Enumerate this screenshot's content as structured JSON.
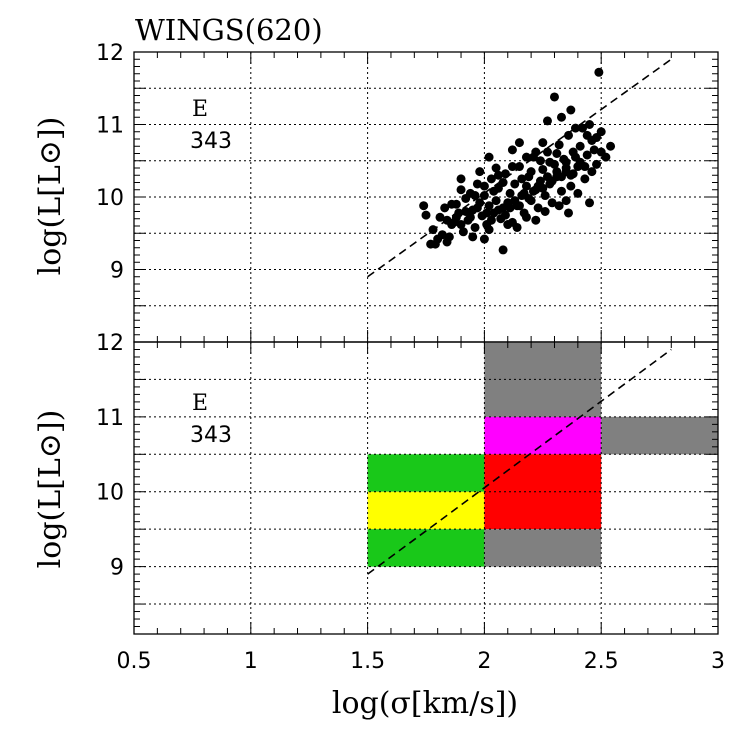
{
  "chart_data": {
    "type": "scatter",
    "title": "WINGS(620)",
    "xlabel": "log(σ[km/s])",
    "ylabel": "log(L[L⊙])",
    "xlim": [
      0.5,
      3.0
    ],
    "x_ticks": [
      "0.5",
      "1",
      "1.5",
      "2",
      "2.5",
      "3"
    ],
    "x_tick_values": [
      0.5,
      1.0,
      1.5,
      2.0,
      2.5,
      3.0
    ],
    "reference_line": {
      "style": "dashed",
      "points": [
        [
          1.5,
          8.9
        ],
        [
          2.8,
          11.9
        ]
      ]
    },
    "panels": [
      {
        "name": "top",
        "type": "scatter",
        "ylim": [
          8.0,
          12.0
        ],
        "y_ticks": [
          "9",
          "10",
          "11",
          "12"
        ],
        "y_tick_values": [
          9,
          10,
          11,
          12
        ],
        "annotation": {
          "label": "E",
          "count": "343"
        },
        "points": [
          [
            1.74,
            9.88
          ],
          [
            1.75,
            9.75
          ],
          [
            1.77,
            9.35
          ],
          [
            1.78,
            9.55
          ],
          [
            1.8,
            9.42
          ],
          [
            1.81,
            9.72
          ],
          [
            1.83,
            9.85
          ],
          [
            1.85,
            9.45
          ],
          [
            1.86,
            9.62
          ],
          [
            1.88,
            9.9
          ],
          [
            1.89,
            9.78
          ],
          [
            1.9,
            10.1
          ],
          [
            1.91,
            9.52
          ],
          [
            1.92,
            9.98
          ],
          [
            1.93,
            9.68
          ],
          [
            1.94,
            10.05
          ],
          [
            1.95,
            9.82
          ],
          [
            1.96,
            9.58
          ],
          [
            1.97,
            10.18
          ],
          [
            1.98,
            9.92
          ],
          [
            1.99,
            9.74
          ],
          [
            2.0,
            10.02
          ],
          [
            2.01,
            9.62
          ],
          [
            2.02,
            9.88
          ],
          [
            2.03,
            10.25
          ],
          [
            2.04,
            9.78
          ],
          [
            2.05,
            9.95
          ],
          [
            2.06,
            10.12
          ],
          [
            2.07,
            9.7
          ],
          [
            2.08,
            9.85
          ],
          [
            2.09,
            10.32
          ],
          [
            2.1,
            9.92
          ],
          [
            2.11,
            10.05
          ],
          [
            2.12,
            9.65
          ],
          [
            2.13,
            10.18
          ],
          [
            2.14,
            9.88
          ],
          [
            2.15,
            10.42
          ],
          [
            2.16,
            10.02
          ],
          [
            2.17,
            9.78
          ],
          [
            2.18,
            10.15
          ],
          [
            2.19,
            10.28
          ],
          [
            2.2,
            9.95
          ],
          [
            2.21,
            10.55
          ],
          [
            2.22,
            10.1
          ],
          [
            2.23,
            9.85
          ],
          [
            2.24,
            10.22
          ],
          [
            2.25,
            10.38
          ],
          [
            2.26,
            10.02
          ],
          [
            2.27,
            10.62
          ],
          [
            2.28,
            10.18
          ],
          [
            2.29,
            9.92
          ],
          [
            2.3,
            10.45
          ],
          [
            2.31,
            10.28
          ],
          [
            2.32,
            10.72
          ],
          [
            2.33,
            10.08
          ],
          [
            2.34,
            10.52
          ],
          [
            2.35,
            10.35
          ],
          [
            2.36,
            10.85
          ],
          [
            2.37,
            10.15
          ],
          [
            2.38,
            10.62
          ],
          [
            2.4,
            10.42
          ],
          [
            2.42,
            10.95
          ],
          [
            2.44,
            10.58
          ],
          [
            2.46,
            10.78
          ],
          [
            2.48,
            10.45
          ],
          [
            2.5,
            10.9
          ],
          [
            2.52,
            10.55
          ],
          [
            2.54,
            10.7
          ],
          [
            2.4,
            10.05
          ],
          [
            2.35,
            9.95
          ],
          [
            2.3,
            11.38
          ],
          [
            2.49,
            11.72
          ],
          [
            2.33,
            11.1
          ],
          [
            2.37,
            11.2
          ],
          [
            2.45,
            11.0
          ],
          [
            2.44,
            10.85
          ],
          [
            2.39,
            10.95
          ],
          [
            2.27,
            11.05
          ],
          [
            2.15,
            10.75
          ],
          [
            2.12,
            10.65
          ],
          [
            2.05,
            10.4
          ],
          [
            1.98,
            10.35
          ],
          [
            2.02,
            10.55
          ],
          [
            1.9,
            10.25
          ],
          [
            1.87,
            9.65
          ],
          [
            1.79,
            9.35
          ],
          [
            1.82,
            9.48
          ],
          [
            1.84,
            9.38
          ],
          [
            1.95,
            9.45
          ],
          [
            2.0,
            9.42
          ],
          [
            2.02,
            9.55
          ],
          [
            2.08,
            9.27
          ],
          [
            2.1,
            9.62
          ],
          [
            2.14,
            9.58
          ],
          [
            2.18,
            9.72
          ],
          [
            2.22,
            9.68
          ],
          [
            2.26,
            9.8
          ],
          [
            2.32,
            9.88
          ],
          [
            2.36,
            9.78
          ],
          [
            2.45,
            9.92
          ],
          [
            2.43,
            10.25
          ],
          [
            2.47,
            10.65
          ],
          [
            2.38,
            10.32
          ],
          [
            2.28,
            10.48
          ],
          [
            2.24,
            10.5
          ],
          [
            2.2,
            10.35
          ],
          [
            2.16,
            10.25
          ],
          [
            2.06,
            10.3
          ],
          [
            2.12,
            10.42
          ],
          [
            2.25,
            10.75
          ],
          [
            2.31,
            10.6
          ],
          [
            2.41,
            10.7
          ],
          [
            2.35,
            10.48
          ],
          [
            2.22,
            10.62
          ],
          [
            2.18,
            10.55
          ],
          [
            2.08,
            10.2
          ],
          [
            2.04,
            10.08
          ],
          [
            2.0,
            10.15
          ],
          [
            1.96,
            10.02
          ],
          [
            1.92,
            9.8
          ],
          [
            1.88,
            9.72
          ],
          [
            1.86,
            9.9
          ],
          [
            1.84,
            9.68
          ],
          [
            1.9,
            9.62
          ],
          [
            1.94,
            9.72
          ],
          [
            1.97,
            9.85
          ],
          [
            2.01,
            9.78
          ],
          [
            2.03,
            9.68
          ],
          [
            2.06,
            9.82
          ],
          [
            2.09,
            9.75
          ],
          [
            2.11,
            9.85
          ],
          [
            2.13,
            9.95
          ],
          [
            2.15,
            9.88
          ],
          [
            2.17,
            10.05
          ],
          [
            2.19,
            9.98
          ],
          [
            2.21,
            10.08
          ],
          [
            2.23,
            10.15
          ],
          [
            2.25,
            10.12
          ],
          [
            2.27,
            10.28
          ],
          [
            2.29,
            10.22
          ],
          [
            2.31,
            10.35
          ],
          [
            2.33,
            10.28
          ],
          [
            2.35,
            10.4
          ],
          [
            2.37,
            10.3
          ],
          [
            2.39,
            10.55
          ],
          [
            2.41,
            10.48
          ],
          [
            2.43,
            10.42
          ],
          [
            2.46,
            10.35
          ],
          [
            2.5,
            10.62
          ],
          [
            2.48,
            10.82
          ]
        ]
      },
      {
        "name": "bottom",
        "type": "heatmap",
        "ylim": [
          8.1,
          12.0
        ],
        "y_ticks": [
          "9",
          "10",
          "11",
          "12"
        ],
        "y_tick_values": [
          9,
          10,
          11,
          12
        ],
        "annotation": {
          "label": "E",
          "count": "343"
        },
        "cells": [
          {
            "x": [
              1.5,
              2.0
            ],
            "y": [
              10.0,
              10.5
            ],
            "color": "#19c819"
          },
          {
            "x": [
              1.5,
              2.0
            ],
            "y": [
              9.5,
              10.0
            ],
            "color": "#ffff00"
          },
          {
            "x": [
              1.5,
              2.0
            ],
            "y": [
              9.0,
              9.5
            ],
            "color": "#19c819"
          },
          {
            "x": [
              2.0,
              2.5
            ],
            "y": [
              11.0,
              12.0
            ],
            "color": "#808080"
          },
          {
            "x": [
              2.0,
              2.5
            ],
            "y": [
              10.5,
              11.0
            ],
            "color": "#ff00ff"
          },
          {
            "x": [
              2.0,
              2.5
            ],
            "y": [
              9.5,
              10.5
            ],
            "color": "#ff0000"
          },
          {
            "x": [
              2.0,
              2.5
            ],
            "y": [
              9.0,
              9.5
            ],
            "color": "#808080"
          },
          {
            "x": [
              2.5,
              3.0
            ],
            "y": [
              10.5,
              11.0
            ],
            "color": "#808080"
          }
        ]
      }
    ]
  }
}
